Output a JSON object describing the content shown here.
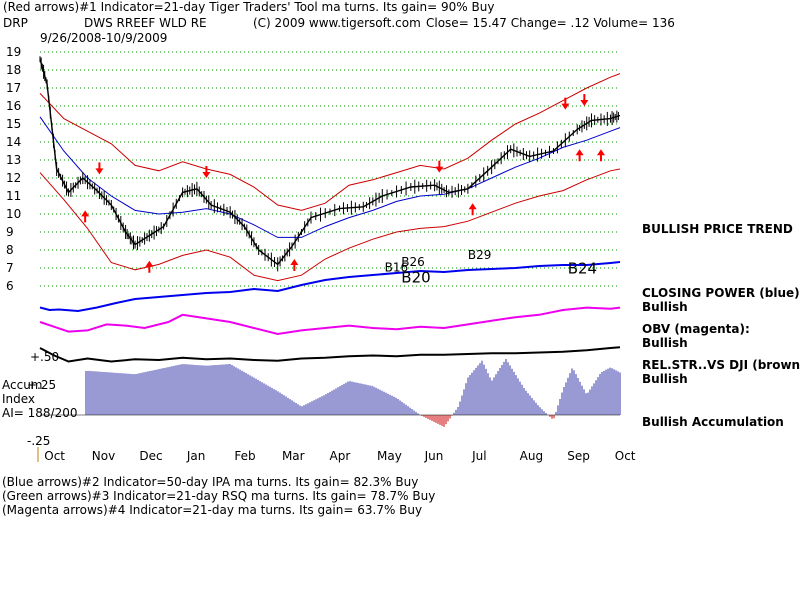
{
  "header": {
    "line1": "(Red arrows)#1 Indicator=21-day Tiger Traders' Tool ma turns. Its gain= 90% Buy",
    "symbol": "DRP",
    "name": "DWS RREEF WLD RE",
    "copyright": "(C) 2009 www.tigersoft.com",
    "stats": "Close=  15.47  Change= .12 Volume= 136",
    "date_range": "9/26/2008-10/9/2009"
  },
  "footer": [
    "(Blue arrows)#2 Indicator=50-day IPA ma turns. Its gain= 82.3% Buy",
    "(Green arrows)#3 Indicator=21-day RSQ ma turns. Its gain= 78.7% Buy",
    "(Magenta arrows)#4 Indicator=21-day ma turns. Its gain= 63.7% Buy"
  ],
  "side_labels": {
    "price": "BULLISH PRICE TREND",
    "closing_power_1": "CLOSING POWER (blue):",
    "closing_power_2": "Bullish",
    "obv_1": "OBV (magenta):",
    "obv_2": "Bullish",
    "relstr_1": "REL.STR..VS DJI (brown):",
    "relstr_2": "Bullish",
    "accum": "Bullish Accumulation"
  },
  "accum_labels": {
    "title1": "Accum",
    "title2": "Index",
    "ai": "AI= 188/200",
    "plus": "+.25",
    "minus": "-.25",
    "fifty": "+.50"
  },
  "colors": {
    "price": "#000000",
    "bands": "#cc0000",
    "ma": "#0000cc",
    "closing_power": "#0000ee",
    "obv": "#ee00ee",
    "relstr": "#000000",
    "accum": "#3333aa",
    "grid": "#009900",
    "arrow": "#ff0000"
  },
  "chart_data": {
    "type": "line",
    "x_label": "",
    "y_label": "",
    "y_range": [
      6,
      19
    ],
    "y_ticks": [
      19,
      18,
      17,
      16,
      15,
      14,
      13,
      12,
      11,
      10,
      9,
      8,
      7,
      6
    ],
    "months": [
      "Oct",
      "Nov",
      "Dec",
      "Jan",
      "Feb",
      "Mar",
      "Apr",
      "May",
      "Jun",
      "Jul",
      "Aug",
      "Sep",
      "Oct"
    ],
    "price_path": [
      [
        0.0,
        18.6
      ],
      [
        0.15,
        17.2
      ],
      [
        0.35,
        12.5
      ],
      [
        0.6,
        11.2
      ],
      [
        0.9,
        12.0
      ],
      [
        1.2,
        11.3
      ],
      [
        1.5,
        10.5
      ],
      [
        1.8,
        9.0
      ],
      [
        2.0,
        8.3
      ],
      [
        2.3,
        8.8
      ],
      [
        2.6,
        9.3
      ],
      [
        3.0,
        11.2
      ],
      [
        3.3,
        11.4
      ],
      [
        3.6,
        10.5
      ],
      [
        4.0,
        10.1
      ],
      [
        4.3,
        9.3
      ],
      [
        4.6,
        8.0
      ],
      [
        5.0,
        7.2
      ],
      [
        5.3,
        8.2
      ],
      [
        5.7,
        9.8
      ],
      [
        6.3,
        10.3
      ],
      [
        6.8,
        10.4
      ],
      [
        7.2,
        11.0
      ],
      [
        7.8,
        11.5
      ],
      [
        8.3,
        11.6
      ],
      [
        8.6,
        11.2
      ],
      [
        9.0,
        11.4
      ],
      [
        9.5,
        12.6
      ],
      [
        9.9,
        13.6
      ],
      [
        10.3,
        13.2
      ],
      [
        10.8,
        13.5
      ],
      [
        11.3,
        14.7
      ],
      [
        11.6,
        15.2
      ],
      [
        12.0,
        15.3
      ],
      [
        12.2,
        15.47
      ]
    ],
    "upper_band": [
      [
        0.0,
        16.7
      ],
      [
        0.5,
        15.3
      ],
      [
        1.0,
        14.6
      ],
      [
        1.5,
        13.9
      ],
      [
        2.0,
        12.7
      ],
      [
        2.5,
        12.4
      ],
      [
        3.0,
        12.9
      ],
      [
        3.5,
        12.5
      ],
      [
        4.0,
        12.2
      ],
      [
        4.5,
        11.5
      ],
      [
        5.0,
        10.5
      ],
      [
        5.5,
        10.2
      ],
      [
        6.0,
        10.6
      ],
      [
        6.5,
        11.6
      ],
      [
        7.0,
        11.9
      ],
      [
        7.5,
        12.3
      ],
      [
        8.0,
        12.7
      ],
      [
        8.5,
        12.5
      ],
      [
        9.0,
        13.1
      ],
      [
        9.5,
        14.1
      ],
      [
        10.0,
        15.0
      ],
      [
        10.5,
        15.6
      ],
      [
        11.0,
        16.3
      ],
      [
        11.5,
        17.0
      ],
      [
        12.0,
        17.6
      ],
      [
        12.2,
        17.8
      ]
    ],
    "lower_band": [
      [
        0.0,
        12.3
      ],
      [
        0.5,
        10.8
      ],
      [
        1.0,
        9.2
      ],
      [
        1.5,
        7.3
      ],
      [
        2.0,
        6.9
      ],
      [
        2.5,
        7.2
      ],
      [
        3.0,
        7.7
      ],
      [
        3.5,
        8.0
      ],
      [
        4.0,
        7.6
      ],
      [
        4.5,
        6.6
      ],
      [
        5.0,
        6.3
      ],
      [
        5.5,
        6.6
      ],
      [
        6.0,
        7.5
      ],
      [
        6.5,
        8.1
      ],
      [
        7.0,
        8.6
      ],
      [
        7.5,
        9.0
      ],
      [
        8.0,
        9.2
      ],
      [
        8.5,
        9.3
      ],
      [
        9.0,
        9.6
      ],
      [
        9.5,
        10.1
      ],
      [
        10.0,
        10.6
      ],
      [
        10.5,
        11.0
      ],
      [
        11.0,
        11.3
      ],
      [
        11.5,
        11.9
      ],
      [
        12.0,
        12.4
      ],
      [
        12.2,
        12.5
      ]
    ],
    "moving_avg": [
      [
        0.0,
        15.4
      ],
      [
        0.5,
        13.5
      ],
      [
        1.0,
        12.0
      ],
      [
        1.5,
        11.0
      ],
      [
        2.0,
        10.2
      ],
      [
        2.5,
        10.0
      ],
      [
        3.0,
        10.1
      ],
      [
        3.5,
        10.3
      ],
      [
        4.0,
        10.0
      ],
      [
        4.5,
        9.4
      ],
      [
        5.0,
        8.7
      ],
      [
        5.5,
        8.7
      ],
      [
        6.0,
        9.3
      ],
      [
        6.5,
        9.8
      ],
      [
        7.0,
        10.2
      ],
      [
        7.5,
        10.7
      ],
      [
        8.0,
        11.0
      ],
      [
        8.5,
        11.1
      ],
      [
        9.0,
        11.4
      ],
      [
        9.5,
        12.0
      ],
      [
        10.0,
        12.6
      ],
      [
        10.5,
        13.1
      ],
      [
        11.0,
        13.7
      ],
      [
        11.5,
        14.1
      ],
      [
        12.0,
        14.6
      ],
      [
        12.2,
        14.8
      ]
    ],
    "red_arrows": [
      {
        "x": 0.95,
        "y": 10.2,
        "dir": "up"
      },
      {
        "x": 1.25,
        "y": 12.2,
        "dir": "down"
      },
      {
        "x": 2.3,
        "y": 7.4,
        "dir": "up"
      },
      {
        "x": 3.5,
        "y": 12.0,
        "dir": "down"
      },
      {
        "x": 5.35,
        "y": 7.5,
        "dir": "up"
      },
      {
        "x": 8.4,
        "y": 12.3,
        "dir": "down"
      },
      {
        "x": 9.1,
        "y": 10.6,
        "dir": "up"
      },
      {
        "x": 11.05,
        "y": 15.8,
        "dir": "down"
      },
      {
        "x": 11.45,
        "y": 16.0,
        "dir": "down"
      },
      {
        "x": 11.35,
        "y": 13.6,
        "dir": "up"
      },
      {
        "x": 11.8,
        "y": 13.6,
        "dir": "up"
      }
    ],
    "signal_labels": [
      {
        "text": "B16",
        "x": 7.25,
        "y": 6.8,
        "large": false
      },
      {
        "text": "B26",
        "x": 7.6,
        "y": 7.1,
        "large": false
      },
      {
        "text": "B20",
        "x": 7.6,
        "y": 6.2,
        "large": true
      },
      {
        "text": "B29",
        "x": 9.0,
        "y": 7.5,
        "large": false
      },
      {
        "text": "B24",
        "x": 11.1,
        "y": 6.7,
        "large": true
      }
    ],
    "closing_power": [
      [
        0.0,
        0.45
      ],
      [
        0.2,
        0.2
      ],
      [
        0.4,
        0.25
      ],
      [
        0.8,
        0.1
      ],
      [
        1.2,
        0.45
      ],
      [
        1.6,
        0.9
      ],
      [
        2.0,
        1.3
      ],
      [
        2.5,
        1.5
      ],
      [
        3.0,
        1.7
      ],
      [
        3.5,
        1.9
      ],
      [
        4.0,
        2.0
      ],
      [
        4.5,
        2.3
      ],
      [
        5.0,
        2.1
      ],
      [
        5.5,
        2.7
      ],
      [
        6.0,
        3.2
      ],
      [
        6.5,
        3.5
      ],
      [
        7.0,
        3.7
      ],
      [
        7.5,
        3.9
      ],
      [
        8.0,
        4.1
      ],
      [
        8.5,
        4.0
      ],
      [
        9.0,
        4.2
      ],
      [
        9.5,
        4.3
      ],
      [
        10.0,
        4.4
      ],
      [
        10.5,
        4.6
      ],
      [
        11.0,
        4.7
      ],
      [
        11.5,
        4.7
      ],
      [
        12.0,
        4.9
      ],
      [
        12.2,
        5.0
      ]
    ],
    "obv": [
      [
        0.0,
        1.5
      ],
      [
        0.3,
        1.1
      ],
      [
        0.6,
        0.7
      ],
      [
        1.0,
        0.8
      ],
      [
        1.4,
        1.3
      ],
      [
        1.8,
        1.2
      ],
      [
        2.2,
        1.0
      ],
      [
        2.7,
        1.5
      ],
      [
        3.0,
        2.1
      ],
      [
        3.5,
        1.8
      ],
      [
        4.0,
        1.5
      ],
      [
        4.5,
        1.0
      ],
      [
        5.0,
        0.5
      ],
      [
        5.5,
        0.8
      ],
      [
        6.0,
        1.0
      ],
      [
        6.5,
        1.2
      ],
      [
        7.0,
        1.0
      ],
      [
        7.5,
        0.9
      ],
      [
        8.0,
        1.1
      ],
      [
        8.5,
        1.0
      ],
      [
        9.0,
        1.3
      ],
      [
        9.5,
        1.6
      ],
      [
        10.0,
        1.9
      ],
      [
        10.5,
        2.1
      ],
      [
        11.0,
        2.5
      ],
      [
        11.5,
        2.7
      ],
      [
        12.0,
        2.6
      ],
      [
        12.2,
        2.7
      ]
    ],
    "rel_str": [
      [
        0.0,
        1.0
      ],
      [
        0.3,
        0.5
      ],
      [
        0.6,
        0.1
      ],
      [
        1.0,
        0.3
      ],
      [
        1.5,
        0.1
      ],
      [
        2.0,
        0.25
      ],
      [
        2.5,
        0.2
      ],
      [
        3.0,
        0.35
      ],
      [
        3.5,
        0.25
      ],
      [
        4.0,
        0.3
      ],
      [
        4.5,
        0.2
      ],
      [
        5.0,
        0.15
      ],
      [
        5.5,
        0.3
      ],
      [
        6.0,
        0.35
      ],
      [
        6.5,
        0.45
      ],
      [
        7.0,
        0.5
      ],
      [
        7.5,
        0.45
      ],
      [
        8.0,
        0.55
      ],
      [
        8.5,
        0.55
      ],
      [
        9.0,
        0.6
      ],
      [
        9.5,
        0.65
      ],
      [
        10.0,
        0.65
      ],
      [
        10.5,
        0.7
      ],
      [
        11.0,
        0.75
      ],
      [
        11.5,
        0.85
      ],
      [
        12.0,
        1.0
      ],
      [
        12.2,
        1.05
      ]
    ],
    "accum_index": [
      [
        0.0,
        0.0
      ],
      [
        0.1,
        0.28
      ],
      [
        0.5,
        0.24
      ],
      [
        1.0,
        0.26
      ],
      [
        1.5,
        0.25
      ],
      [
        2.0,
        0.24
      ],
      [
        2.5,
        0.27
      ],
      [
        3.0,
        0.3
      ],
      [
        3.5,
        0.29
      ],
      [
        4.0,
        0.3
      ],
      [
        4.5,
        0.22
      ],
      [
        5.0,
        0.14
      ],
      [
        5.5,
        0.05
      ],
      [
        6.0,
        0.12
      ],
      [
        6.5,
        0.2
      ],
      [
        7.0,
        0.17
      ],
      [
        7.5,
        0.1
      ],
      [
        8.0,
        0.0
      ],
      [
        8.5,
        -0.07
      ],
      [
        8.8,
        0.05
      ],
      [
        9.0,
        0.22
      ],
      [
        9.3,
        0.32
      ],
      [
        9.5,
        0.2
      ],
      [
        9.8,
        0.33
      ],
      [
        10.2,
        0.15
      ],
      [
        10.5,
        0.05
      ],
      [
        10.8,
        -0.03
      ],
      [
        11.0,
        0.15
      ],
      [
        11.2,
        0.28
      ],
      [
        11.5,
        0.12
      ],
      [
        11.8,
        0.25
      ],
      [
        12.0,
        0.28
      ],
      [
        12.2,
        0.25
      ]
    ]
  }
}
